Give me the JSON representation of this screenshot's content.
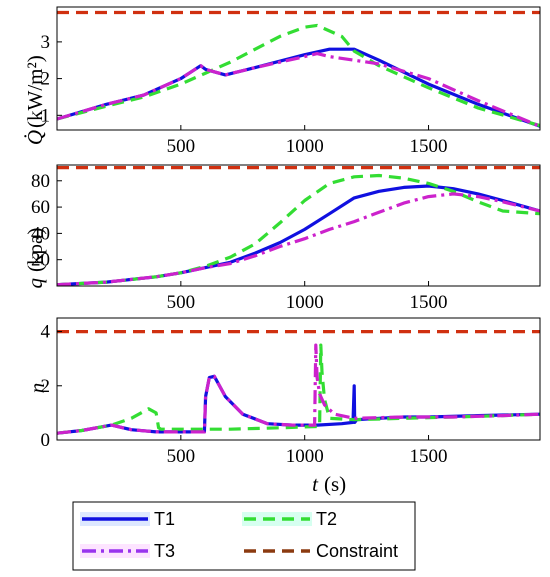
{
  "chart_data": [
    {
      "type": "line",
      "ylabel": "(kW/m²)",
      "xlim": [
        0,
        1950
      ],
      "ylim": [
        0.6,
        3.95
      ],
      "xticks": [
        500,
        1000,
        1500
      ],
      "yticks": [
        1,
        2,
        3
      ],
      "series": [
        {
          "name": "T1",
          "color": "#1010e0",
          "dash": "solid",
          "x": [
            0,
            200,
            350,
            500,
            580,
            600,
            680,
            800,
            1000,
            1100,
            1200,
            1300,
            1500,
            1700,
            1950
          ],
          "y": [
            0.9,
            1.3,
            1.55,
            2.0,
            2.35,
            2.25,
            2.1,
            2.3,
            2.65,
            2.8,
            2.8,
            2.5,
            1.85,
            1.3,
            0.7
          ]
        },
        {
          "name": "T2",
          "color": "#33dd33",
          "dash": "dashed",
          "x": [
            0,
            200,
            350,
            500,
            600,
            700,
            800,
            900,
            1000,
            1050,
            1150,
            1200,
            1300,
            1500,
            1700,
            1950
          ],
          "y": [
            0.9,
            1.25,
            1.5,
            1.85,
            2.15,
            2.45,
            2.8,
            3.15,
            3.4,
            3.45,
            3.15,
            2.75,
            2.35,
            1.75,
            1.2,
            0.72
          ]
        },
        {
          "name": "T3",
          "color": "#cc22cc",
          "dash": "dashdot",
          "x": [
            0,
            200,
            350,
            500,
            580,
            600,
            680,
            800,
            1000,
            1050,
            1100,
            1200,
            1300,
            1500,
            1700,
            1950
          ],
          "y": [
            0.9,
            1.3,
            1.55,
            2.0,
            2.35,
            2.25,
            2.1,
            2.3,
            2.6,
            2.68,
            2.6,
            2.5,
            2.4,
            2.0,
            1.4,
            0.7
          ]
        },
        {
          "name": "Constraint",
          "color": "#d03010",
          "dash": "dashed",
          "x": [
            0,
            1950
          ],
          "y": [
            3.8,
            3.8
          ]
        }
      ]
    },
    {
      "type": "line",
      "ylabel": "(kpa)",
      "xlim": [
        0,
        1950
      ],
      "ylim": [
        0,
        92
      ],
      "xticks": [
        500,
        1000,
        1500
      ],
      "yticks": [
        20,
        40,
        60,
        80
      ],
      "series": [
        {
          "name": "T1",
          "color": "#1010e0",
          "dash": "solid",
          "x": [
            0,
            200,
            400,
            500,
            600,
            700,
            800,
            900,
            1000,
            1100,
            1200,
            1300,
            1400,
            1500,
            1600,
            1700,
            1800,
            1950
          ],
          "y": [
            1,
            3,
            7,
            10,
            14,
            18,
            25,
            33,
            43,
            55,
            67,
            72,
            75,
            76,
            74,
            70,
            65,
            57
          ]
        },
        {
          "name": "T2",
          "color": "#33dd33",
          "dash": "dashed",
          "x": [
            0,
            200,
            400,
            500,
            600,
            700,
            800,
            900,
            1000,
            1100,
            1200,
            1300,
            1400,
            1500,
            1600,
            1700,
            1800,
            1950
          ],
          "y": [
            1,
            3,
            7,
            10,
            15,
            22,
            32,
            48,
            65,
            78,
            83,
            84,
            82,
            78,
            72,
            64,
            57,
            55
          ]
        },
        {
          "name": "T3",
          "color": "#cc22cc",
          "dash": "dashdot",
          "x": [
            0,
            200,
            400,
            500,
            600,
            700,
            800,
            900,
            1000,
            1100,
            1200,
            1300,
            1400,
            1500,
            1600,
            1700,
            1800,
            1950
          ],
          "y": [
            1,
            3,
            7,
            10,
            14,
            17,
            23,
            30,
            36,
            43,
            49,
            56,
            63,
            68,
            70,
            68,
            64,
            57
          ]
        },
        {
          "name": "Constraint",
          "color": "#d03010",
          "dash": "dashed",
          "x": [
            0,
            1950
          ],
          "y": [
            90,
            90
          ]
        }
      ]
    },
    {
      "type": "line",
      "ylabel": "n",
      "xlabel": "(s)",
      "xlim": [
        0,
        1950
      ],
      "ylim": [
        0,
        4.5
      ],
      "xticks": [
        500,
        1000,
        1500
      ],
      "yticks": [
        0,
        2,
        4
      ],
      "series": [
        {
          "name": "T1",
          "color": "#1010e0",
          "dash": "solid",
          "x": [
            0,
            100,
            220,
            300,
            400,
            500,
            595,
            600,
            615,
            635,
            680,
            750,
            850,
            950,
            1050,
            1150,
            1195,
            1200,
            1202,
            1210,
            1300,
            1400,
            1500,
            1700,
            1950
          ],
          "y": [
            0.25,
            0.35,
            0.55,
            0.38,
            0.3,
            0.3,
            0.3,
            1.6,
            2.3,
            2.35,
            1.6,
            0.95,
            0.6,
            0.55,
            0.55,
            0.6,
            0.65,
            2.0,
            0.65,
            0.75,
            0.8,
            0.85,
            0.85,
            0.9,
            0.95
          ]
        },
        {
          "name": "T2",
          "color": "#33dd33",
          "dash": "dashed",
          "x": [
            0,
            100,
            220,
            300,
            370,
            400,
            410,
            420,
            500,
            700,
            900,
            1060,
            1065,
            1070,
            1080,
            1100,
            1200,
            1400,
            1600,
            1800,
            1950
          ],
          "y": [
            0.25,
            0.35,
            0.55,
            0.8,
            1.15,
            1.0,
            0.45,
            0.4,
            0.4,
            0.4,
            0.45,
            0.5,
            3.5,
            2.5,
            1.5,
            0.8,
            0.75,
            0.8,
            0.85,
            0.9,
            0.95
          ]
        },
        {
          "name": "T3",
          "color": "#cc22cc",
          "dash": "dashdot",
          "x": [
            0,
            100,
            220,
            300,
            400,
            500,
            595,
            600,
            615,
            635,
            680,
            750,
            850,
            950,
            1040,
            1045,
            1050,
            1060,
            1080,
            1120,
            1200,
            1400,
            1600,
            1800,
            1950
          ],
          "y": [
            0.25,
            0.35,
            0.55,
            0.38,
            0.3,
            0.3,
            0.3,
            1.6,
            2.3,
            2.35,
            1.6,
            0.95,
            0.6,
            0.55,
            0.55,
            3.5,
            2.3,
            1.7,
            1.3,
            0.95,
            0.8,
            0.85,
            0.85,
            0.9,
            0.95
          ]
        },
        {
          "name": "Constraint",
          "color": "#d03010",
          "dash": "dashed",
          "x": [
            0,
            1950
          ],
          "y": [
            4,
            4
          ]
        }
      ]
    }
  ],
  "ylabel_symbols": [
    "Q̇",
    "q"
  ],
  "xlabel_symbol": "t",
  "legend": [
    "T1",
    "T2",
    "T3",
    "Constraint"
  ]
}
